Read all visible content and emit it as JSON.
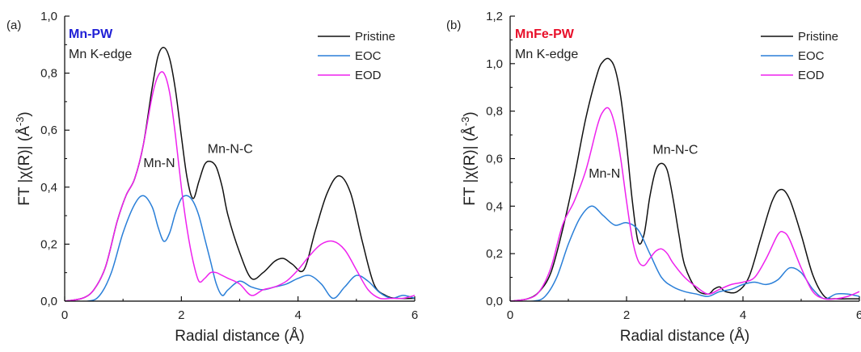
{
  "chart_data": [
    {
      "panel_label": "(a)",
      "type": "line",
      "material": "Mn-PW",
      "material_color": "#1f1fd6",
      "edge": "Mn K-edge",
      "xlabel": "Radial distance (Å)",
      "ylabel_main": "FT |χ(R)| (Å",
      "ylabel_sup": "-3",
      "ylabel_close": ")",
      "xlim": [
        0,
        6
      ],
      "ylim": [
        0,
        1.0
      ],
      "xticks": [
        "0",
        "2",
        "4",
        "6"
      ],
      "yticks": [
        "0,0",
        "0,2",
        "0,4",
        "0,6",
        "0,8",
        "1,0"
      ],
      "grid": false,
      "legend_position": "top-right",
      "annotations": [
        {
          "text": "Mn-N",
          "x": 1.35,
          "y": 0.47
        },
        {
          "text": "Mn-N-C",
          "x": 2.45,
          "y": 0.52
        }
      ],
      "series": [
        {
          "name": "Pristine",
          "color": "#111111",
          "x": [
            0,
            0.3,
            0.5,
            0.7,
            0.9,
            1.05,
            1.2,
            1.35,
            1.5,
            1.6,
            1.7,
            1.8,
            1.9,
            2.0,
            2.1,
            2.2,
            2.3,
            2.4,
            2.5,
            2.6,
            2.7,
            2.8,
            3.0,
            3.2,
            3.4,
            3.6,
            3.75,
            3.9,
            4.1,
            4.3,
            4.5,
            4.7,
            4.9,
            5.1,
            5.3,
            5.5,
            5.7,
            6.0
          ],
          "y": [
            0,
            0.01,
            0.04,
            0.12,
            0.28,
            0.37,
            0.43,
            0.55,
            0.75,
            0.86,
            0.89,
            0.85,
            0.74,
            0.58,
            0.43,
            0.36,
            0.42,
            0.48,
            0.49,
            0.47,
            0.4,
            0.3,
            0.17,
            0.08,
            0.1,
            0.14,
            0.15,
            0.13,
            0.11,
            0.25,
            0.38,
            0.44,
            0.38,
            0.21,
            0.06,
            0.02,
            0.01,
            0.01
          ]
        },
        {
          "name": "EOC",
          "color": "#2a7fd8",
          "x": [
            0,
            0.4,
            0.6,
            0.8,
            1.0,
            1.2,
            1.35,
            1.5,
            1.6,
            1.7,
            1.8,
            1.9,
            2.0,
            2.1,
            2.2,
            2.3,
            2.4,
            2.5,
            2.6,
            2.7,
            2.8,
            3.0,
            3.2,
            3.4,
            3.6,
            3.8,
            4.0,
            4.2,
            4.4,
            4.6,
            4.8,
            5.0,
            5.2,
            5.4,
            5.6,
            5.8,
            6.0
          ],
          "y": [
            0,
            0,
            0.02,
            0.1,
            0.24,
            0.34,
            0.37,
            0.33,
            0.26,
            0.21,
            0.24,
            0.31,
            0.36,
            0.37,
            0.35,
            0.3,
            0.22,
            0.14,
            0.06,
            0.02,
            0.04,
            0.07,
            0.05,
            0.04,
            0.05,
            0.06,
            0.08,
            0.09,
            0.06,
            0.01,
            0.05,
            0.09,
            0.07,
            0.03,
            0.01,
            0.02,
            0.01
          ]
        },
        {
          "name": "EOD",
          "color": "#ee22ee",
          "x": [
            0,
            0.3,
            0.5,
            0.7,
            0.9,
            1.05,
            1.2,
            1.35,
            1.5,
            1.6,
            1.7,
            1.8,
            1.9,
            2.0,
            2.1,
            2.2,
            2.3,
            2.4,
            2.5,
            2.6,
            2.7,
            2.8,
            3.0,
            3.2,
            3.4,
            3.6,
            3.8,
            4.0,
            4.2,
            4.4,
            4.6,
            4.8,
            5.0,
            5.2,
            5.4,
            5.6,
            5.8,
            6.0
          ],
          "y": [
            0,
            0.01,
            0.04,
            0.12,
            0.28,
            0.37,
            0.43,
            0.55,
            0.72,
            0.79,
            0.8,
            0.73,
            0.58,
            0.4,
            0.25,
            0.14,
            0.07,
            0.08,
            0.1,
            0.1,
            0.09,
            0.08,
            0.06,
            0.02,
            0.04,
            0.05,
            0.07,
            0.11,
            0.16,
            0.2,
            0.21,
            0.18,
            0.11,
            0.04,
            0.01,
            0.01,
            0.01,
            0.02
          ]
        }
      ]
    },
    {
      "panel_label": "(b)",
      "type": "line",
      "material": "MnFe-PW",
      "material_color": "#e8102a",
      "edge": "Mn K-edge",
      "xlabel": "Radial distance (Å)",
      "ylabel_main": "FT |χ(R)| (Å",
      "ylabel_sup": "-3",
      "ylabel_close": ")",
      "xlim": [
        0,
        6
      ],
      "ylim": [
        0,
        1.2
      ],
      "xticks": [
        "0",
        "2",
        "4",
        "6"
      ],
      "yticks": [
        "0,0",
        "0,2",
        "0,4",
        "0,6",
        "0,8",
        "1,0",
        "1,2"
      ],
      "grid": false,
      "legend_position": "top-right",
      "annotations": [
        {
          "text": "Mn-N",
          "x": 1.35,
          "y": 0.52
        },
        {
          "text": "Mn-N-C",
          "x": 2.45,
          "y": 0.62
        }
      ],
      "series": [
        {
          "name": "Pristine",
          "color": "#111111",
          "x": [
            0,
            0.3,
            0.5,
            0.7,
            0.9,
            1.1,
            1.3,
            1.5,
            1.6,
            1.7,
            1.8,
            1.9,
            2.0,
            2.1,
            2.2,
            2.3,
            2.4,
            2.5,
            2.6,
            2.7,
            2.8,
            2.9,
            3.0,
            3.2,
            3.4,
            3.5,
            3.6,
            3.7,
            3.9,
            4.1,
            4.3,
            4.5,
            4.65,
            4.8,
            5.0,
            5.2,
            5.4,
            5.6,
            5.8,
            6.0
          ],
          "y": [
            0,
            0.01,
            0.04,
            0.12,
            0.3,
            0.52,
            0.77,
            0.96,
            1.01,
            1.02,
            0.98,
            0.86,
            0.66,
            0.42,
            0.25,
            0.28,
            0.44,
            0.55,
            0.58,
            0.55,
            0.43,
            0.28,
            0.15,
            0.05,
            0.03,
            0.05,
            0.06,
            0.04,
            0.04,
            0.1,
            0.26,
            0.42,
            0.47,
            0.43,
            0.28,
            0.11,
            0.02,
            0.01,
            0.01,
            0.01
          ]
        },
        {
          "name": "EOC",
          "color": "#2a7fd8",
          "x": [
            0,
            0.4,
            0.6,
            0.8,
            1.0,
            1.2,
            1.4,
            1.6,
            1.8,
            2.0,
            2.2,
            2.4,
            2.6,
            2.8,
            3.0,
            3.2,
            3.4,
            3.6,
            3.8,
            4.0,
            4.2,
            4.4,
            4.6,
            4.8,
            5.0,
            5.2,
            5.4,
            5.6,
            5.8,
            6.0
          ],
          "y": [
            0,
            0,
            0.02,
            0.1,
            0.24,
            0.35,
            0.4,
            0.36,
            0.32,
            0.33,
            0.3,
            0.2,
            0.1,
            0.06,
            0.04,
            0.03,
            0.02,
            0.04,
            0.05,
            0.07,
            0.08,
            0.07,
            0.09,
            0.14,
            0.12,
            0.05,
            0.01,
            0.03,
            0.03,
            0.02
          ]
        },
        {
          "name": "EOD",
          "color": "#ee22ee",
          "x": [
            0,
            0.3,
            0.5,
            0.7,
            0.9,
            1.1,
            1.3,
            1.5,
            1.6,
            1.7,
            1.8,
            1.9,
            2.0,
            2.1,
            2.2,
            2.3,
            2.4,
            2.5,
            2.6,
            2.7,
            2.8,
            3.0,
            3.2,
            3.4,
            3.6,
            3.8,
            4.0,
            4.2,
            4.4,
            4.6,
            4.7,
            4.8,
            5.0,
            5.2,
            5.4,
            5.6,
            5.8,
            6.0
          ],
          "y": [
            0,
            0.01,
            0.04,
            0.14,
            0.32,
            0.42,
            0.55,
            0.74,
            0.8,
            0.81,
            0.74,
            0.6,
            0.42,
            0.26,
            0.17,
            0.15,
            0.18,
            0.21,
            0.22,
            0.2,
            0.16,
            0.1,
            0.06,
            0.03,
            0.05,
            0.07,
            0.08,
            0.1,
            0.18,
            0.28,
            0.29,
            0.26,
            0.14,
            0.04,
            0.01,
            0.01,
            0.02,
            0.04
          ]
        }
      ]
    }
  ]
}
